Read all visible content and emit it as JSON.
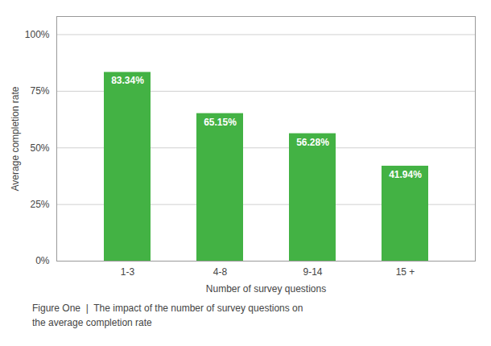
{
  "chart_data": {
    "type": "bar",
    "categories": [
      "1-3",
      "4-8",
      "9-14",
      "15 +"
    ],
    "values": [
      83.34,
      65.15,
      56.28,
      41.94
    ],
    "value_labels": [
      "83.34%",
      "65.15%",
      "56.28%",
      "41.94%"
    ],
    "data_labels": true,
    "color": "#43b244",
    "xlabel": "Number of survey questions",
    "ylabel": "Average completion rate",
    "ylim": [
      0,
      108
    ],
    "yticks": [
      {
        "value": 0,
        "label": "0%"
      },
      {
        "value": 25,
        "label": "25%"
      },
      {
        "value": 50,
        "label": "50%"
      },
      {
        "value": 75,
        "label": "75%"
      },
      {
        "value": 100,
        "label": "100%"
      }
    ],
    "grid": true,
    "caption": [
      "Figure One  |  The impact of the number of survey questions on",
      "the average completion rate"
    ]
  }
}
